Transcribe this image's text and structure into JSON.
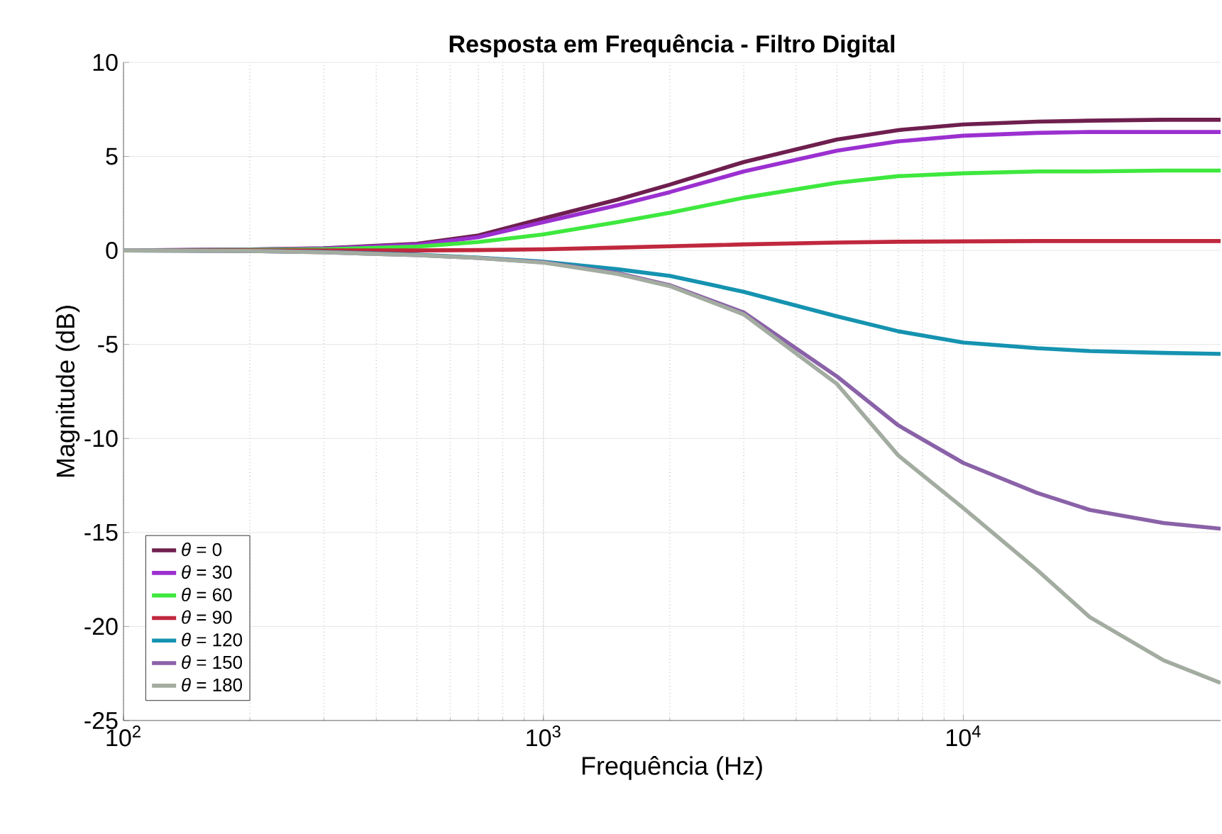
{
  "chart_data": {
    "type": "line",
    "title": "**Resposta em Frequência - Filtro Digital**",
    "xlabel": "Frequência (Hz)",
    "ylabel": "Magnitude (dB)",
    "x": [
      100,
      200,
      300,
      500,
      700,
      1000,
      1500,
      2000,
      3000,
      5000,
      7000,
      10000,
      15000,
      20000,
      30000,
      41000
    ],
    "series": [
      {
        "name": "*θ* = 0",
        "color": "#6e1f4e",
        "values": [
          0,
          0.05,
          0.12,
          0.35,
          0.8,
          1.7,
          2.7,
          3.5,
          4.7,
          5.9,
          6.4,
          6.7,
          6.85,
          6.9,
          6.95,
          6.95
        ]
      },
      {
        "name": "*θ* = 30",
        "color": "#9b30d0",
        "values": [
          0,
          0.05,
          0.1,
          0.3,
          0.7,
          1.5,
          2.4,
          3.1,
          4.2,
          5.3,
          5.8,
          6.1,
          6.25,
          6.3,
          6.3,
          6.3
        ]
      },
      {
        "name": "*θ* = 60",
        "color": "#3ee83e",
        "values": [
          0,
          0.03,
          0.06,
          0.2,
          0.45,
          0.85,
          1.5,
          2.0,
          2.8,
          3.6,
          3.95,
          4.1,
          4.2,
          4.2,
          4.25,
          4.25
        ]
      },
      {
        "name": "*θ* = 90",
        "color": "#c0283e",
        "values": [
          0,
          0,
          0,
          0,
          0.02,
          0.06,
          0.15,
          0.22,
          0.32,
          0.42,
          0.46,
          0.48,
          0.5,
          0.5,
          0.5,
          0.5
        ]
      },
      {
        "name": "*θ* = 120",
        "color": "#1593b0",
        "values": [
          0,
          -0.03,
          -0.08,
          -0.22,
          -0.38,
          -0.6,
          -1.0,
          -1.35,
          -2.2,
          -3.5,
          -4.3,
          -4.9,
          -5.2,
          -5.35,
          -5.45,
          -5.5
        ]
      },
      {
        "name": "*θ* = 150",
        "color": "#8a62a8",
        "values": [
          0,
          -0.03,
          -0.1,
          -0.25,
          -0.4,
          -0.63,
          -1.2,
          -1.85,
          -3.3,
          -6.7,
          -9.3,
          -11.3,
          -12.9,
          -13.8,
          -14.5,
          -14.8
        ]
      },
      {
        "name": "*θ* = 180",
        "color": "#a3aca0",
        "values": [
          0,
          -0.03,
          -0.1,
          -0.25,
          -0.4,
          -0.65,
          -1.25,
          -1.9,
          -3.4,
          -7.1,
          -10.9,
          -13.7,
          -17.0,
          -19.5,
          -21.8,
          -23.0
        ]
      }
    ],
    "xlim": [
      100,
      41000
    ],
    "ylim": [
      -25,
      10
    ],
    "xticks": [
      {
        "value": 100,
        "label": "10$^{2}$"
      },
      {
        "value": 1000,
        "label": "10$^{3}$"
      },
      {
        "value": 10000,
        "label": "10$^{4}$"
      }
    ],
    "yticks": [
      -25,
      -20,
      -15,
      -10,
      -5,
      0,
      5,
      10
    ],
    "log": "x",
    "grid": true,
    "legend": "bottom left",
    "line_style": "solid",
    "marker": "none"
  }
}
